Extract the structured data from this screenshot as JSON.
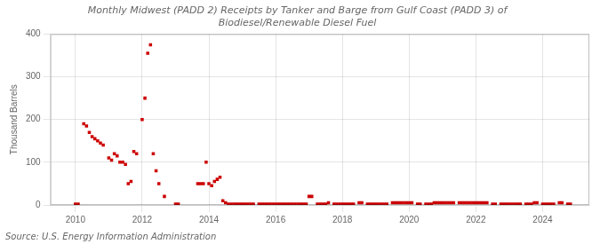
{
  "chart_data": {
    "type": "scatter",
    "title": "Monthly Midwest (PADD 2) Receipts by Tanker and Barge from Gulf Coast (PADD 3) of\nBiodiesel/Renewable Diesel Fuel",
    "y_label": "Thousand Barrels",
    "annotations": [
      "Source: U.S. Energy Information Administration"
    ],
    "color": "#cc0000",
    "marker": "square",
    "grid": true,
    "xlim": [
      2009.25,
      2025.4
    ],
    "xticks": [
      2010,
      2012,
      2014,
      2016,
      2018,
      2020,
      2022,
      2024
    ],
    "ylim": [
      0,
      400
    ],
    "yticks": [
      0,
      100,
      200,
      300,
      400
    ],
    "x": [
      2010.0,
      2010.083,
      2010.25,
      2010.333,
      2010.417,
      2010.5,
      2010.583,
      2010.667,
      2010.75,
      2010.833,
      2011.0,
      2011.083,
      2011.167,
      2011.25,
      2011.333,
      2011.417,
      2011.5,
      2011.583,
      2011.667,
      2011.75,
      2011.833,
      2012.0,
      2012.083,
      2012.167,
      2012.25,
      2012.333,
      2012.417,
      2012.5,
      2012.667,
      2013.0,
      2013.083,
      2013.667,
      2013.75,
      2013.833,
      2013.917,
      2014.0,
      2014.083,
      2014.167,
      2014.25,
      2014.333,
      2014.417,
      2014.5,
      2014.583,
      2014.667,
      2014.75,
      2014.833,
      2014.917,
      2015.0,
      2015.083,
      2015.167,
      2015.25,
      2015.333,
      2015.5,
      2015.583,
      2015.667,
      2015.75,
      2015.833,
      2015.917,
      2016.0,
      2016.083,
      2016.167,
      2016.25,
      2016.333,
      2016.417,
      2016.5,
      2016.583,
      2016.667,
      2016.75,
      2016.833,
      2016.917,
      2017.0,
      2017.083,
      2017.25,
      2017.333,
      2017.417,
      2017.5,
      2017.583,
      2017.75,
      2017.833,
      2017.917,
      2018.0,
      2018.083,
      2018.167,
      2018.25,
      2018.333,
      2018.5,
      2018.583,
      2018.75,
      2018.833,
      2018.917,
      2019.0,
      2019.083,
      2019.167,
      2019.25,
      2019.333,
      2019.5,
      2019.583,
      2019.667,
      2019.75,
      2019.833,
      2019.917,
      2020.0,
      2020.083,
      2020.25,
      2020.333,
      2020.5,
      2020.583,
      2020.667,
      2020.75,
      2020.833,
      2020.917,
      2021.0,
      2021.083,
      2021.167,
      2021.25,
      2021.333,
      2021.5,
      2021.583,
      2021.667,
      2021.75,
      2021.833,
      2021.917,
      2022.0,
      2022.083,
      2022.167,
      2022.25,
      2022.333,
      2022.5,
      2022.583,
      2022.75,
      2022.833,
      2022.917,
      2023.0,
      2023.083,
      2023.167,
      2023.25,
      2023.333,
      2023.5,
      2023.583,
      2023.667,
      2023.75,
      2023.833,
      2024.0,
      2024.083,
      2024.167,
      2024.25,
      2024.333,
      2024.5,
      2024.583,
      2024.75,
      2024.833
    ],
    "values": [
      2,
      2,
      190,
      185,
      170,
      160,
      155,
      150,
      145,
      140,
      110,
      105,
      120,
      115,
      100,
      100,
      95,
      50,
      55,
      125,
      120,
      200,
      250,
      355,
      375,
      120,
      80,
      50,
      20,
      2,
      2,
      50,
      50,
      50,
      100,
      50,
      45,
      55,
      60,
      65,
      10,
      5,
      2,
      2,
      2,
      2,
      2,
      2,
      2,
      2,
      2,
      2,
      2,
      2,
      2,
      2,
      2,
      2,
      2,
      2,
      2,
      2,
      2,
      2,
      2,
      2,
      2,
      2,
      2,
      2,
      20,
      20,
      2,
      2,
      2,
      2,
      5,
      2,
      2,
      2,
      2,
      2,
      2,
      2,
      2,
      5,
      5,
      2,
      2,
      2,
      2,
      2,
      2,
      2,
      2,
      5,
      5,
      5,
      5,
      5,
      5,
      5,
      5,
      2,
      2,
      2,
      2,
      2,
      5,
      5,
      5,
      5,
      5,
      5,
      5,
      5,
      5,
      5,
      5,
      5,
      5,
      5,
      5,
      5,
      5,
      5,
      5,
      2,
      2,
      2,
      2,
      2,
      2,
      2,
      2,
      2,
      2,
      2,
      2,
      2,
      5,
      5,
      2,
      2,
      2,
      2,
      2,
      5,
      5,
      2,
      2
    ]
  }
}
